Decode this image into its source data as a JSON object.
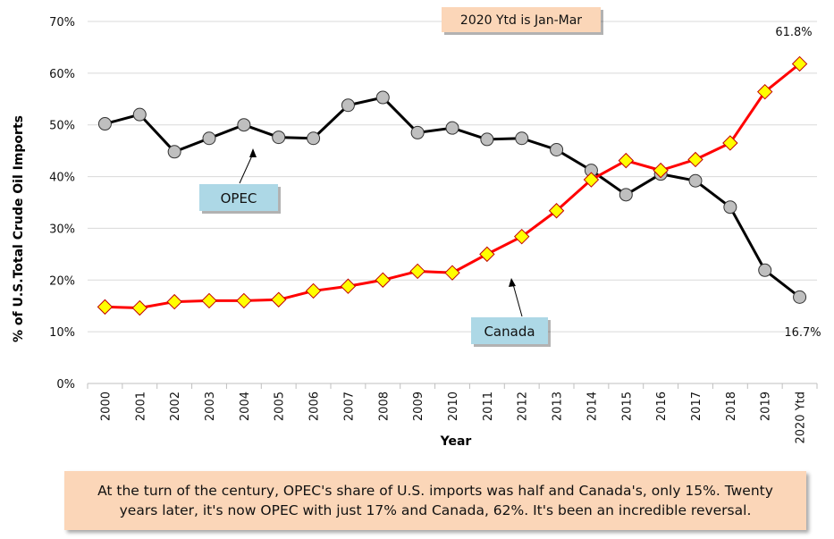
{
  "chart_data": {
    "type": "line",
    "categories": [
      "2000",
      "2001",
      "2002",
      "2003",
      "2004",
      "2005",
      "2006",
      "2007",
      "2008",
      "2009",
      "2010",
      "2011",
      "2012",
      "2013",
      "2014",
      "2015",
      "2016",
      "2017",
      "2018",
      "2019",
      "2020 Ytd"
    ],
    "series": [
      {
        "name": "OPEC",
        "color": "#000000",
        "marker_color": "#bfbfbf",
        "marker": "circle",
        "values": [
          50.2,
          52.0,
          44.8,
          47.4,
          50.0,
          47.6,
          47.4,
          53.8,
          55.3,
          48.5,
          49.4,
          47.2,
          47.4,
          45.2,
          41.2,
          36.5,
          40.5,
          39.2,
          34.1,
          21.9,
          16.7
        ]
      },
      {
        "name": "Canada",
        "color": "#ff0000",
        "marker_color": "#ffff00",
        "marker": "diamond",
        "values": [
          14.8,
          14.6,
          15.8,
          16.0,
          16.0,
          16.2,
          17.9,
          18.8,
          20.0,
          21.7,
          21.4,
          25.0,
          28.4,
          33.4,
          39.4,
          43.1,
          41.2,
          43.3,
          46.5,
          56.4,
          61.8
        ]
      }
    ],
    "ylim": [
      0,
      70
    ],
    "yticks": [
      0,
      10,
      20,
      30,
      40,
      50,
      60,
      70
    ],
    "ytick_labels": [
      "0%",
      "10%",
      "20%",
      "30%",
      "40%",
      "50%",
      "60%",
      "70%"
    ],
    "xlabel": "Year",
    "ylabel": "% of U.S.Total Crude Oil Imports",
    "grid": true,
    "note": "2020 Ytd is Jan-Mar",
    "callouts": {
      "opec": "OPEC",
      "canada": "Canada"
    },
    "end_labels": {
      "canada": "61.8%",
      "opec": "16.7%"
    }
  },
  "caption": "At the turn of the century, OPEC's share of U.S. imports was half and Canada's, only 15%. Twenty years later, it's now OPEC with just 17% and Canada, 62%. It's been an incredible reversal.",
  "colors": {
    "note_bg": "#fbd6b8",
    "callout_bg": "#add8e6",
    "caption_bg": "#fbd6b8",
    "grid": "#d9d9d9"
  }
}
